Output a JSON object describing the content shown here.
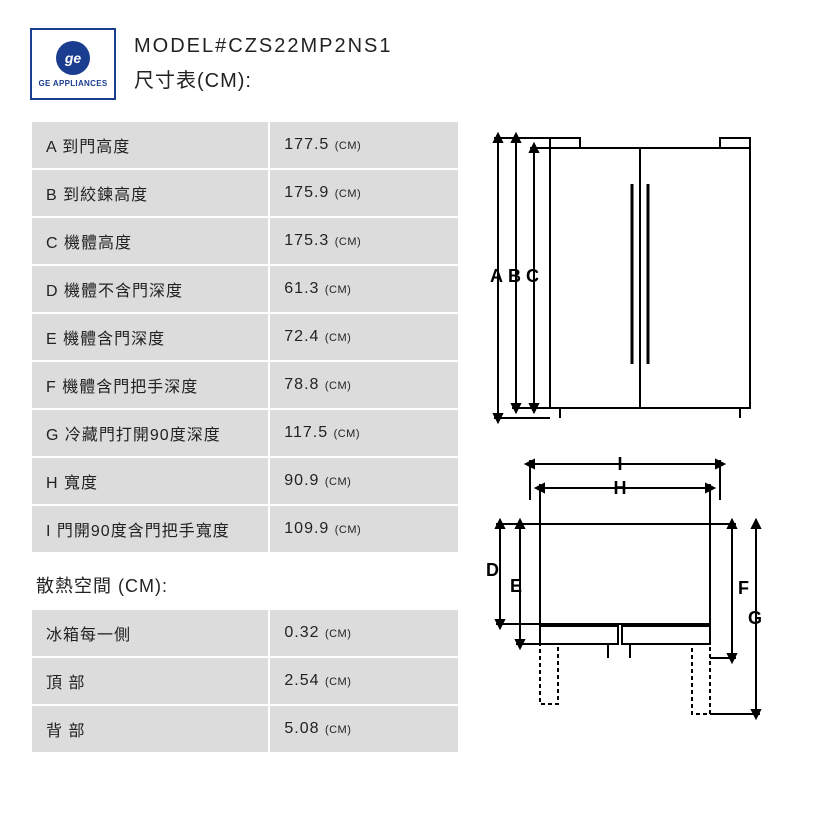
{
  "header": {
    "logo_brand": "GE APPLIANCES",
    "model_label": "MODEL#CZS22MP2NS1",
    "subtitle": "尺寸表(CM):"
  },
  "dim_rows": [
    {
      "code": "A",
      "label": "到門高度",
      "value": "177.5",
      "unit": "(CM)"
    },
    {
      "code": "B",
      "label": "到絞鍊高度",
      "value": "175.9",
      "unit": "(CM)"
    },
    {
      "code": "C",
      "label": "機體高度",
      "value": "175.3",
      "unit": "(CM)"
    },
    {
      "code": "D",
      "label": "機體不含門深度",
      "value": "61.3",
      "unit": "(CM)"
    },
    {
      "code": "E",
      "label": "機體含門深度",
      "value": "72.4",
      "unit": "(CM)"
    },
    {
      "code": "F",
      "label": "機體含門把手深度",
      "value": "78.8",
      "unit": "(CM)"
    },
    {
      "code": "G",
      "label": "冷藏門打開90度深度",
      "value": "117.5",
      "unit": "(CM)"
    },
    {
      "code": "H",
      "label": "寬度",
      "value": "90.9",
      "unit": "(CM)"
    },
    {
      "code": "I",
      "label": "門開90度含門把手寬度",
      "value": "109.9",
      "unit": "(CM)"
    }
  ],
  "clearance_title": "散熱空間 (CM):",
  "clearance_rows": [
    {
      "label": "冰箱每一側",
      "value": "0.32",
      "unit": "(CM)"
    },
    {
      "label": "頂 部",
      "value": "2.54",
      "unit": "(CM)"
    },
    {
      "label": "背 部",
      "value": "5.08",
      "unit": "(CM)"
    }
  ],
  "diagram_letters": {
    "a": "A",
    "b": "B",
    "c": "C",
    "d": "D",
    "e": "E",
    "f": "F",
    "g": "G",
    "h": "H",
    "i": "I"
  },
  "style": {
    "row_bg": "#dcdcdc",
    "page_bg": "#ffffff",
    "logo_color": "#1a3d8f",
    "stroke": "#000000",
    "stroke_width": 2
  }
}
